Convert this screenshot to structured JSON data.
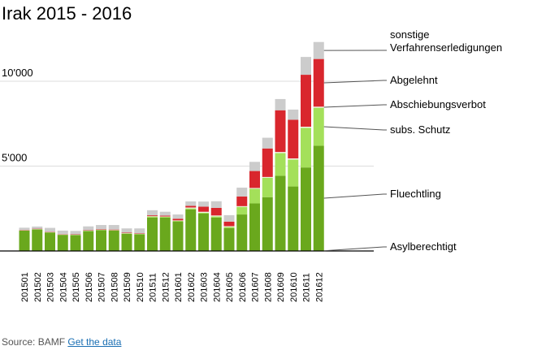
{
  "chart_data": {
    "type": "bar",
    "stacked": true,
    "title": "Irak 2015 - 2016",
    "xlabel": "",
    "ylabel": "",
    "ylim": [
      0,
      12500
    ],
    "yticks": [
      {
        "value": 5000,
        "label": "5'000"
      },
      {
        "value": 10000,
        "label": "10'000"
      }
    ],
    "categories": [
      "201501",
      "201502",
      "201503",
      "201504",
      "201505",
      "201506",
      "201507",
      "201508",
      "201509",
      "201510",
      "201511",
      "201512",
      "201601",
      "201602",
      "201603",
      "201604",
      "201605",
      "201606",
      "201607",
      "201608",
      "201609",
      "201610",
      "201611",
      "201612"
    ],
    "series": [
      {
        "name": "Asylberechtigt",
        "color": "#222222",
        "values": [
          20,
          20,
          20,
          20,
          20,
          20,
          20,
          20,
          20,
          20,
          20,
          20,
          20,
          20,
          20,
          20,
          20,
          20,
          20,
          20,
          20,
          20,
          20,
          20
        ]
      },
      {
        "name": "Fluechtling",
        "color": "#6aa81d",
        "values": [
          1180,
          1250,
          1070,
          930,
          920,
          1150,
          1200,
          1180,
          1000,
          960,
          1950,
          1950,
          1720,
          2430,
          2180,
          1950,
          1320,
          2130,
          2780,
          3150,
          4410,
          3780,
          4900,
          6180
        ]
      },
      {
        "name": "subs. Schutz",
        "color": "#a4e05a",
        "values": [
          10,
          10,
          10,
          10,
          10,
          20,
          20,
          20,
          20,
          20,
          60,
          40,
          40,
          60,
          60,
          70,
          80,
          450,
          870,
          1150,
          1340,
          1590,
          2340,
          2240
        ]
      },
      {
        "name": "Abschiebungsverbot",
        "color": "#f7f7ee",
        "values": [
          10,
          10,
          10,
          10,
          10,
          10,
          10,
          10,
          10,
          10,
          20,
          20,
          20,
          50,
          50,
          50,
          40,
          40,
          40,
          40,
          60,
          60,
          60,
          60
        ]
      },
      {
        "name": "Abgelehnt",
        "color": "#d9262d",
        "values": [
          20,
          20,
          20,
          20,
          20,
          20,
          30,
          30,
          30,
          30,
          50,
          50,
          100,
          100,
          300,
          450,
          270,
          570,
          1000,
          1680,
          2460,
          2280,
          3060,
          2810
        ]
      },
      {
        "name": "sonstige Verfahrenserledigungen",
        "color": "#cccccc",
        "values": [
          130,
          130,
          230,
          210,
          200,
          230,
          250,
          270,
          250,
          290,
          300,
          230,
          250,
          260,
          300,
          390,
          380,
          520,
          540,
          630,
          660,
          600,
          1050,
          1000
        ]
      }
    ],
    "legend_order": [
      "sonstige Verfahrenserledigungen",
      "Abgelehnt",
      "Abschiebungsverbot",
      "subs. Schutz",
      "Fluechtling",
      "Asylberechtigt"
    ],
    "legend_placement": "right"
  },
  "footer": {
    "source_text": "Source: BAMF",
    "link_text": "Get the data"
  }
}
